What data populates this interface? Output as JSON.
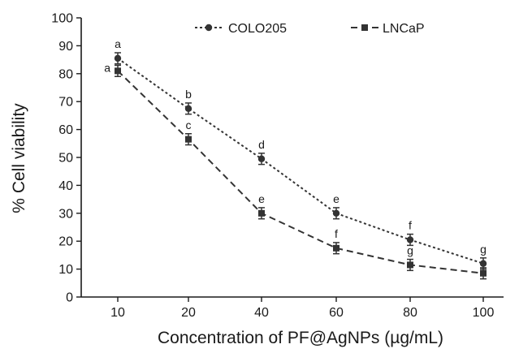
{
  "chart_data": {
    "type": "line",
    "xlabel": "Concentration of PF@AgNPs (µg/mL)",
    "ylabel": "% Cell viability",
    "categories": [
      "10",
      "20",
      "40",
      "60",
      "80",
      "100"
    ],
    "ylim": [
      0,
      100
    ],
    "yticks": [
      0,
      10,
      20,
      30,
      40,
      50,
      60,
      70,
      80,
      90,
      100
    ],
    "grid": false,
    "legend_position": "top",
    "series": [
      {
        "name": "COLO205",
        "color": "#333333",
        "marker": "circle",
        "line_style": "dotted",
        "values": [
          85.5,
          67.5,
          49.5,
          30,
          20.5,
          12
        ],
        "errors": [
          2,
          2,
          2,
          2,
          2,
          2
        ],
        "labels": [
          "a",
          "b",
          "d",
          "e",
          "f",
          "g"
        ]
      },
      {
        "name": "LNCaP",
        "color": "#333333",
        "marker": "square",
        "line_style": "dashed",
        "values": [
          81,
          56.5,
          30,
          17.5,
          11.5,
          8.5
        ],
        "errors": [
          2,
          2,
          2,
          2,
          2,
          2
        ],
        "labels": [
          "a",
          "c",
          "e",
          "f",
          "g",
          ""
        ]
      }
    ]
  }
}
